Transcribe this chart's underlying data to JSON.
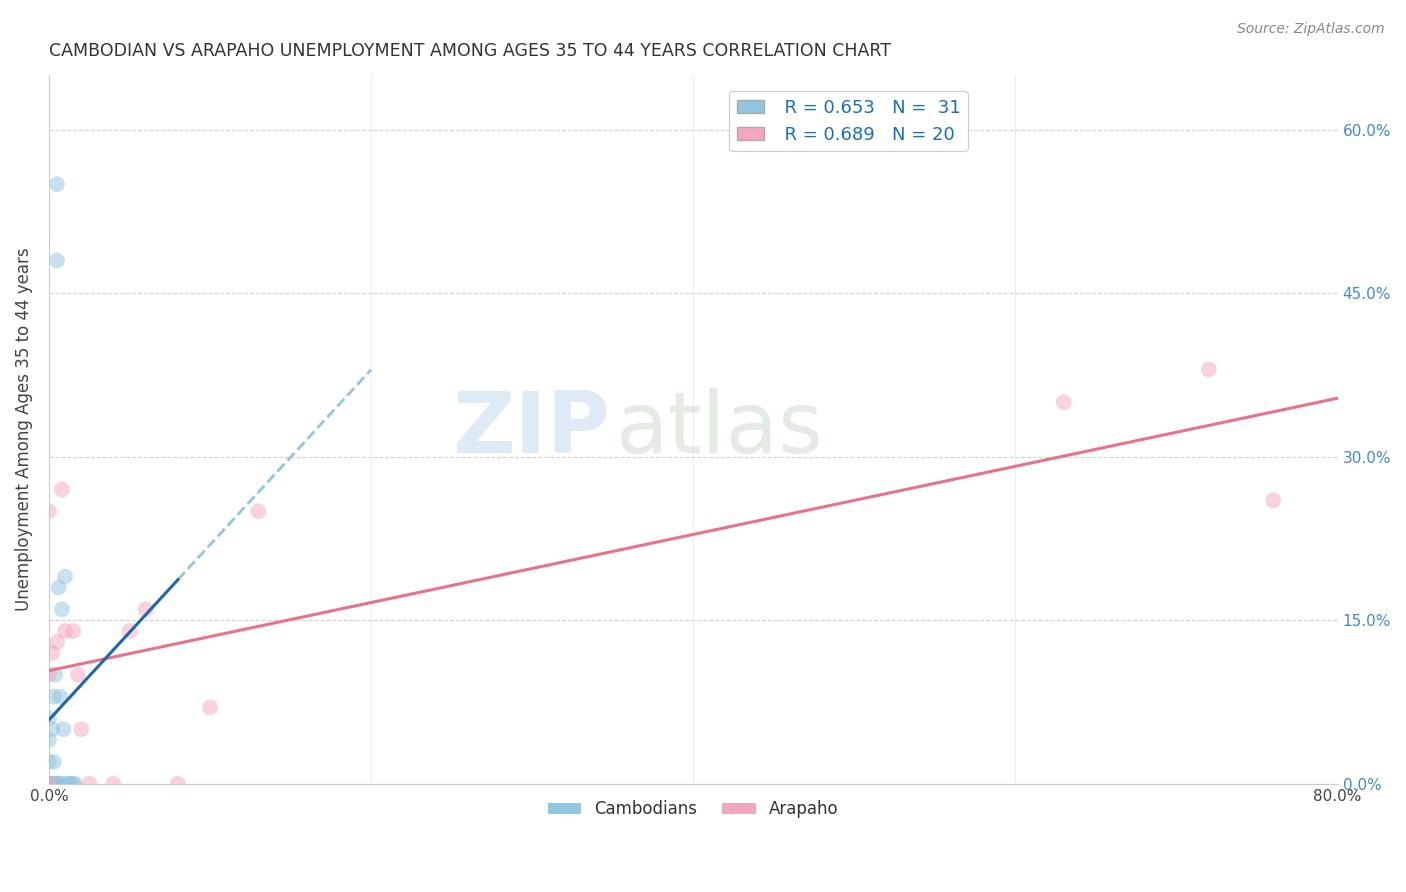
{
  "title": "CAMBODIAN VS ARAPAHO UNEMPLOYMENT AMONG AGES 35 TO 44 YEARS CORRELATION CHART",
  "source": "Source: ZipAtlas.com",
  "ylabel": "Unemployment Among Ages 35 to 44 years",
  "xlim": [
    0,
    0.8
  ],
  "ylim": [
    0,
    0.65
  ],
  "xtick_positions": [
    0.0,
    0.1,
    0.2,
    0.3,
    0.4,
    0.5,
    0.6,
    0.7,
    0.8
  ],
  "xticklabels": [
    "0.0%",
    "",
    "",
    "",
    "",
    "",
    "",
    "",
    "80.0%"
  ],
  "ytick_positions": [
    0.0,
    0.15,
    0.3,
    0.45,
    0.6
  ],
  "yticklabels": [
    "0.0%",
    "15.0%",
    "30.0%",
    "45.0%",
    "60.0%"
  ],
  "legend_r1": "R = 0.653",
  "legend_n1": "N =  31",
  "legend_r2": "R = 0.689",
  "legend_n2": "N = 20",
  "cambodian_color": "#92c5de",
  "arapaho_color": "#f4a6be",
  "cambodian_line_color": "#2166ac",
  "arapaho_line_color": "#e8728a",
  "scatter_alpha": 0.5,
  "marker_size": 130,
  "cambodian_points_x": [
    0.0,
    0.0,
    0.0,
    0.0,
    0.0,
    0.0,
    0.0,
    0.0,
    0.0,
    0.0,
    0.002,
    0.002,
    0.003,
    0.003,
    0.004,
    0.004,
    0.005,
    0.005,
    0.006,
    0.007,
    0.007,
    0.008,
    0.009,
    0.01,
    0.01,
    0.012,
    0.013,
    0.015,
    0.016,
    0.005,
    0.006
  ],
  "cambodian_points_y": [
    0.0,
    0.0,
    0.0,
    0.0,
    0.0,
    0.0,
    0.0,
    0.02,
    0.04,
    0.06,
    0.0,
    0.05,
    0.02,
    0.08,
    0.0,
    0.1,
    0.55,
    0.48,
    0.18,
    0.0,
    0.08,
    0.16,
    0.05,
    0.19,
    0.0,
    0.0,
    0.0,
    0.0,
    0.0,
    0.0,
    0.0
  ],
  "arapaho_points_x": [
    0.0,
    0.0,
    0.0,
    0.002,
    0.005,
    0.008,
    0.01,
    0.015,
    0.018,
    0.02,
    0.025,
    0.04,
    0.05,
    0.06,
    0.08,
    0.1,
    0.13,
    0.63,
    0.72,
    0.76
  ],
  "arapaho_points_y": [
    0.0,
    0.1,
    0.25,
    0.12,
    0.13,
    0.27,
    0.14,
    0.14,
    0.1,
    0.05,
    0.0,
    0.0,
    0.14,
    0.16,
    0.0,
    0.07,
    0.25,
    0.35,
    0.38,
    0.26
  ],
  "watermark_zip": "ZIP",
  "watermark_atlas": "atlas",
  "background_color": "#ffffff",
  "grid_color": "#cccccc",
  "tick_color": "#4488cc",
  "legend_text_color": "#1a6fbd"
}
